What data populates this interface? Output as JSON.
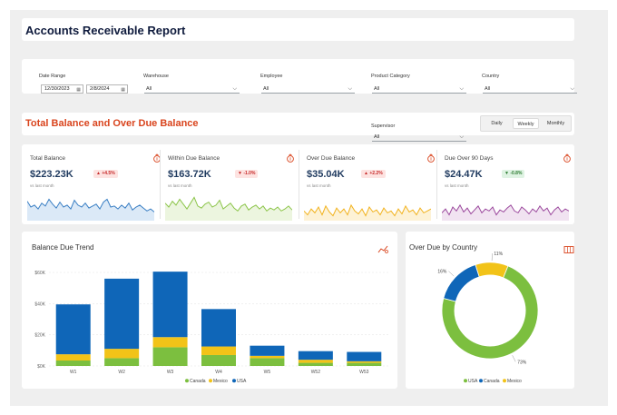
{
  "report_title": "Accounts Receivable Report",
  "filters": {
    "date_range": {
      "label": "Date Range",
      "start": "12/30/2023",
      "end": "2/8/2024"
    },
    "warehouse": {
      "label": "Warehouse",
      "value": "All"
    },
    "employee": {
      "label": "Employee",
      "value": "All"
    },
    "product_category": {
      "label": "Product Category",
      "value": "All"
    },
    "country": {
      "label": "Country",
      "value": "All"
    },
    "supervisor": {
      "label": "Supervisor",
      "value": "All"
    }
  },
  "section_title": "Total Balance and Over Due Balance",
  "period_toggle": {
    "options": [
      "Daily",
      "Weekly",
      "Monthly"
    ],
    "selected": "Weekly"
  },
  "kpis": [
    {
      "title": "Total Balance",
      "value": "$223.23K",
      "change": "▲ +4.5%",
      "direction": "up",
      "sub": "vs last month",
      "color": "#3a7fc4",
      "fill": "#dbe9f7"
    },
    {
      "title": "Within Due Balance",
      "value": "$163.72K",
      "change": "▼ -1.0%",
      "direction": "down",
      "sub": "vs last month",
      "color": "#8cc54a",
      "fill": "#ecf5df"
    },
    {
      "title": "Over Due Balance",
      "value": "$35.04K",
      "change": "▲ +2.2%",
      "direction": "up",
      "sub": "vs last month",
      "color": "#f2b31f",
      "fill": "#fdf2d6"
    },
    {
      "title": "Due Over 90 Days",
      "value": "$24.47K",
      "change": "▼ -0.8%",
      "direction": "down-good",
      "sub": "vs last month",
      "color": "#9c4a9e",
      "fill": "#f1e3f1"
    }
  ],
  "colors": {
    "canada": "#7cbf3f",
    "mexico": "#f2c318",
    "usa": "#0f66b8",
    "accent": "#d9441d"
  },
  "icons": {
    "kpi": "money-bag-icon",
    "trend": "chart-settings-icon",
    "country": "map-icon"
  },
  "balance_trend": {
    "title": "Balance Due Trend",
    "legend": [
      "Canada",
      "Mexico",
      "USA"
    ]
  },
  "over_due_country": {
    "title": "Over Due by Country",
    "legend": [
      "USA",
      "Canada",
      "Mexico"
    ]
  },
  "chart_data": [
    {
      "type": "bar",
      "title": "Balance Due Trend",
      "categories": [
        "W1",
        "W2",
        "W3",
        "W4",
        "W5",
        "W52",
        "W53"
      ],
      "series": [
        {
          "name": "Canada",
          "values": [
            3500,
            5000,
            12000,
            7000,
            5000,
            2000,
            2000
          ]
        },
        {
          "name": "Mexico",
          "values": [
            4000,
            6000,
            6500,
            5500,
            1500,
            2000,
            1000
          ]
        },
        {
          "name": "USA",
          "values": [
            32000,
            45000,
            42000,
            24000,
            6500,
            5500,
            6000
          ]
        }
      ],
      "y_ticks": [
        "$0K",
        "$20K",
        "$40K",
        "$60K"
      ],
      "ylim": [
        0,
        60000
      ],
      "legend_position": "bottom",
      "stacked": true
    },
    {
      "type": "pie",
      "style": "donut",
      "title": "Over Due by Country",
      "labels": [
        "USA",
        "Canada",
        "Mexico"
      ],
      "values": [
        73,
        16,
        11
      ],
      "data_labels": [
        "73%",
        "16%",
        "11%"
      ],
      "legend_position": "bottom"
    }
  ],
  "sparklines": [
    [
      20,
      14,
      16,
      12,
      18,
      15,
      22,
      17,
      13,
      19,
      14,
      16,
      12,
      21,
      16,
      14,
      18,
      13,
      15,
      17,
      12,
      19,
      22,
      14,
      15,
      12,
      16,
      13,
      18,
      11,
      14,
      16,
      13,
      10,
      12,
      9
    ],
    [
      18,
      14,
      20,
      16,
      22,
      17,
      12,
      18,
      24,
      15,
      13,
      17,
      19,
      14,
      16,
      21,
      12,
      15,
      18,
      13,
      10,
      15,
      17,
      11,
      14,
      16,
      12,
      15,
      10,
      13,
      11,
      14,
      10,
      12,
      15,
      11
    ],
    [
      10,
      6,
      12,
      8,
      14,
      6,
      15,
      9,
      5,
      13,
      8,
      12,
      6,
      16,
      10,
      7,
      12,
      5,
      14,
      9,
      11,
      6,
      13,
      8,
      10,
      5,
      12,
      7,
      15,
      9,
      11,
      6,
      13,
      8,
      10,
      12
    ],
    [
      8,
      12,
      6,
      14,
      10,
      16,
      9,
      13,
      7,
      11,
      15,
      8,
      12,
      10,
      14,
      6,
      11,
      9,
      13,
      16,
      10,
      8,
      14,
      11,
      7,
      12,
      9,
      15,
      10,
      13,
      6,
      11,
      14,
      9,
      12,
      10
    ]
  ]
}
